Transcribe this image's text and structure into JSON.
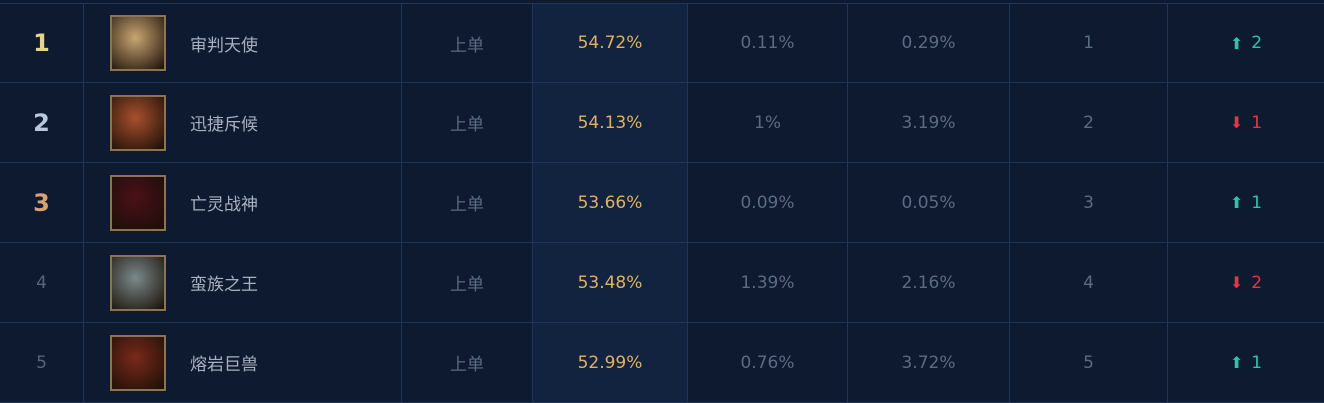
{
  "colors": {
    "rank_1": "#e6d488",
    "rank_2": "#b9c8dc",
    "rank_3": "#d9a070",
    "rank_other": "#55657c",
    "up": "#2ec4a8",
    "down": "#e8344a",
    "win_rate": "#e3b060"
  },
  "rows": [
    {
      "rank": "1",
      "name": "审判天使",
      "position": "上单",
      "win_rate": "54.72%",
      "pick_rate": "0.11%",
      "ban_rate": "0.29%",
      "tier": "1",
      "trend": "up",
      "change": "2",
      "avatar_color": "#c9a672"
    },
    {
      "rank": "2",
      "name": "迅捷斥候",
      "position": "上单",
      "win_rate": "54.13%",
      "pick_rate": "1%",
      "ban_rate": "3.19%",
      "tier": "2",
      "trend": "down",
      "change": "1",
      "avatar_color": "#a8502c"
    },
    {
      "rank": "3",
      "name": "亡灵战神",
      "position": "上单",
      "win_rate": "53.66%",
      "pick_rate": "0.09%",
      "ban_rate": "0.05%",
      "tier": "3",
      "trend": "up",
      "change": "1",
      "avatar_color": "#4a1018"
    },
    {
      "rank": "4",
      "name": "蛮族之王",
      "position": "上单",
      "win_rate": "53.48%",
      "pick_rate": "1.39%",
      "ban_rate": "2.16%",
      "tier": "4",
      "trend": "down",
      "change": "2",
      "avatar_color": "#7a8a8a"
    },
    {
      "rank": "5",
      "name": "熔岩巨兽",
      "position": "上单",
      "win_rate": "52.99%",
      "pick_rate": "0.76%",
      "ban_rate": "3.72%",
      "tier": "5",
      "trend": "up",
      "change": "1",
      "avatar_color": "#7a2a1a"
    }
  ]
}
